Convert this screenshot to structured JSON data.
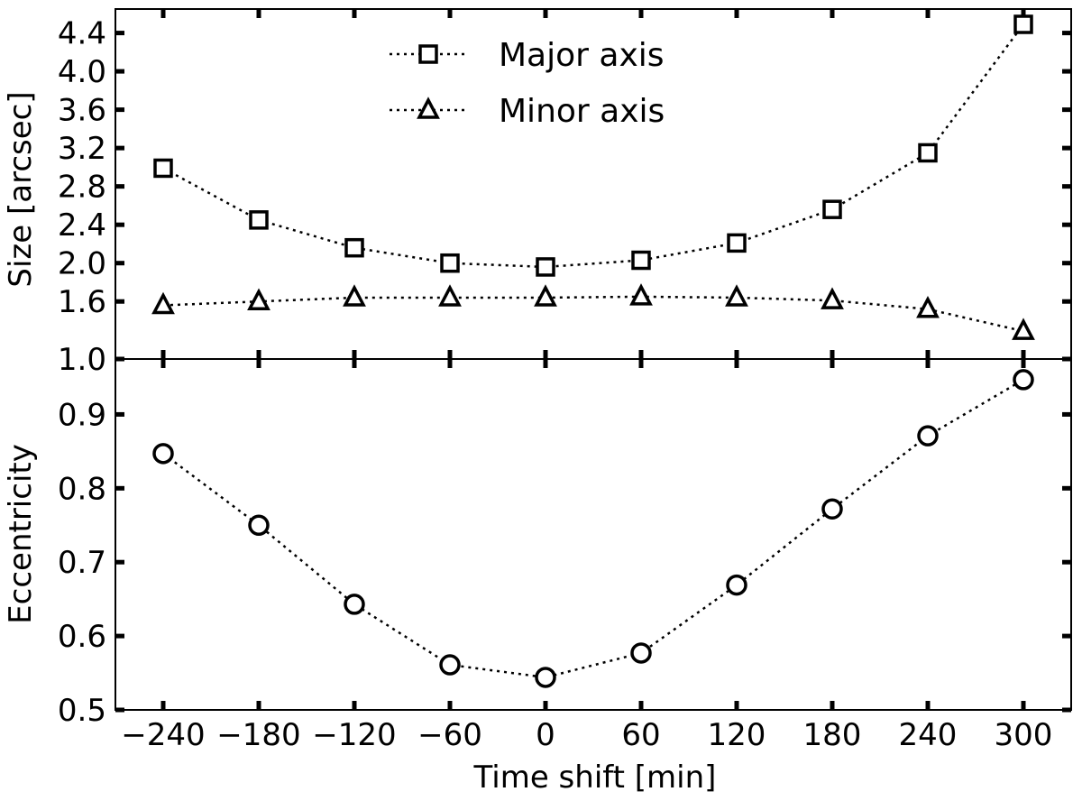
{
  "chart_data": [
    {
      "type": "line",
      "panel": "top",
      "ylabel": "Size [arcsec]",
      "ylim": [
        1.0,
        4.65
      ],
      "yticks": [
        1.0,
        1.6,
        2.0,
        2.4,
        2.8,
        3.2,
        3.6,
        4.0,
        4.4
      ],
      "ytick_labels": [
        "1.0",
        "1.6",
        "2.0",
        "2.4",
        "2.8",
        "3.2",
        "3.6",
        "4.0",
        "4.4"
      ],
      "x": [
        -240,
        -180,
        -120,
        -60,
        0,
        60,
        120,
        180,
        240,
        300
      ],
      "series": [
        {
          "name": "Major axis",
          "marker": "square",
          "linestyle": "dotted",
          "values": [
            2.99,
            2.45,
            2.16,
            2.0,
            1.96,
            2.03,
            2.21,
            2.56,
            3.15,
            4.49
          ]
        },
        {
          "name": "Minor axis",
          "marker": "triangle",
          "linestyle": "dotted",
          "values": [
            1.56,
            1.6,
            1.64,
            1.64,
            1.64,
            1.65,
            1.64,
            1.61,
            1.52,
            1.29
          ]
        }
      ],
      "legend": "top-center"
    },
    {
      "type": "line",
      "panel": "bottom",
      "ylabel": "Eccentricity",
      "ylim": [
        0.5,
        0.975
      ],
      "yticks": [
        0.5,
        0.6,
        0.7,
        0.8,
        0.9
      ],
      "ytick_labels": [
        "0.5",
        "0.6",
        "0.7",
        "0.8",
        "0.9"
      ],
      "xlabel": "Time shift [min]",
      "xlim": [
        -270,
        330
      ],
      "xticks": [
        -240,
        -180,
        -120,
        -60,
        0,
        60,
        120,
        180,
        240,
        300
      ],
      "xtick_labels": [
        "−240",
        "−180",
        "−120",
        "−60",
        "0",
        "60",
        "120",
        "180",
        "240",
        "300"
      ],
      "x": [
        -240,
        -180,
        -120,
        -60,
        0,
        60,
        120,
        180,
        240,
        300
      ],
      "series": [
        {
          "marker": "circle",
          "linestyle": "dotted",
          "values": [
            0.847,
            0.75,
            0.643,
            0.561,
            0.544,
            0.577,
            0.669,
            0.772,
            0.871,
            0.947
          ]
        }
      ]
    }
  ]
}
